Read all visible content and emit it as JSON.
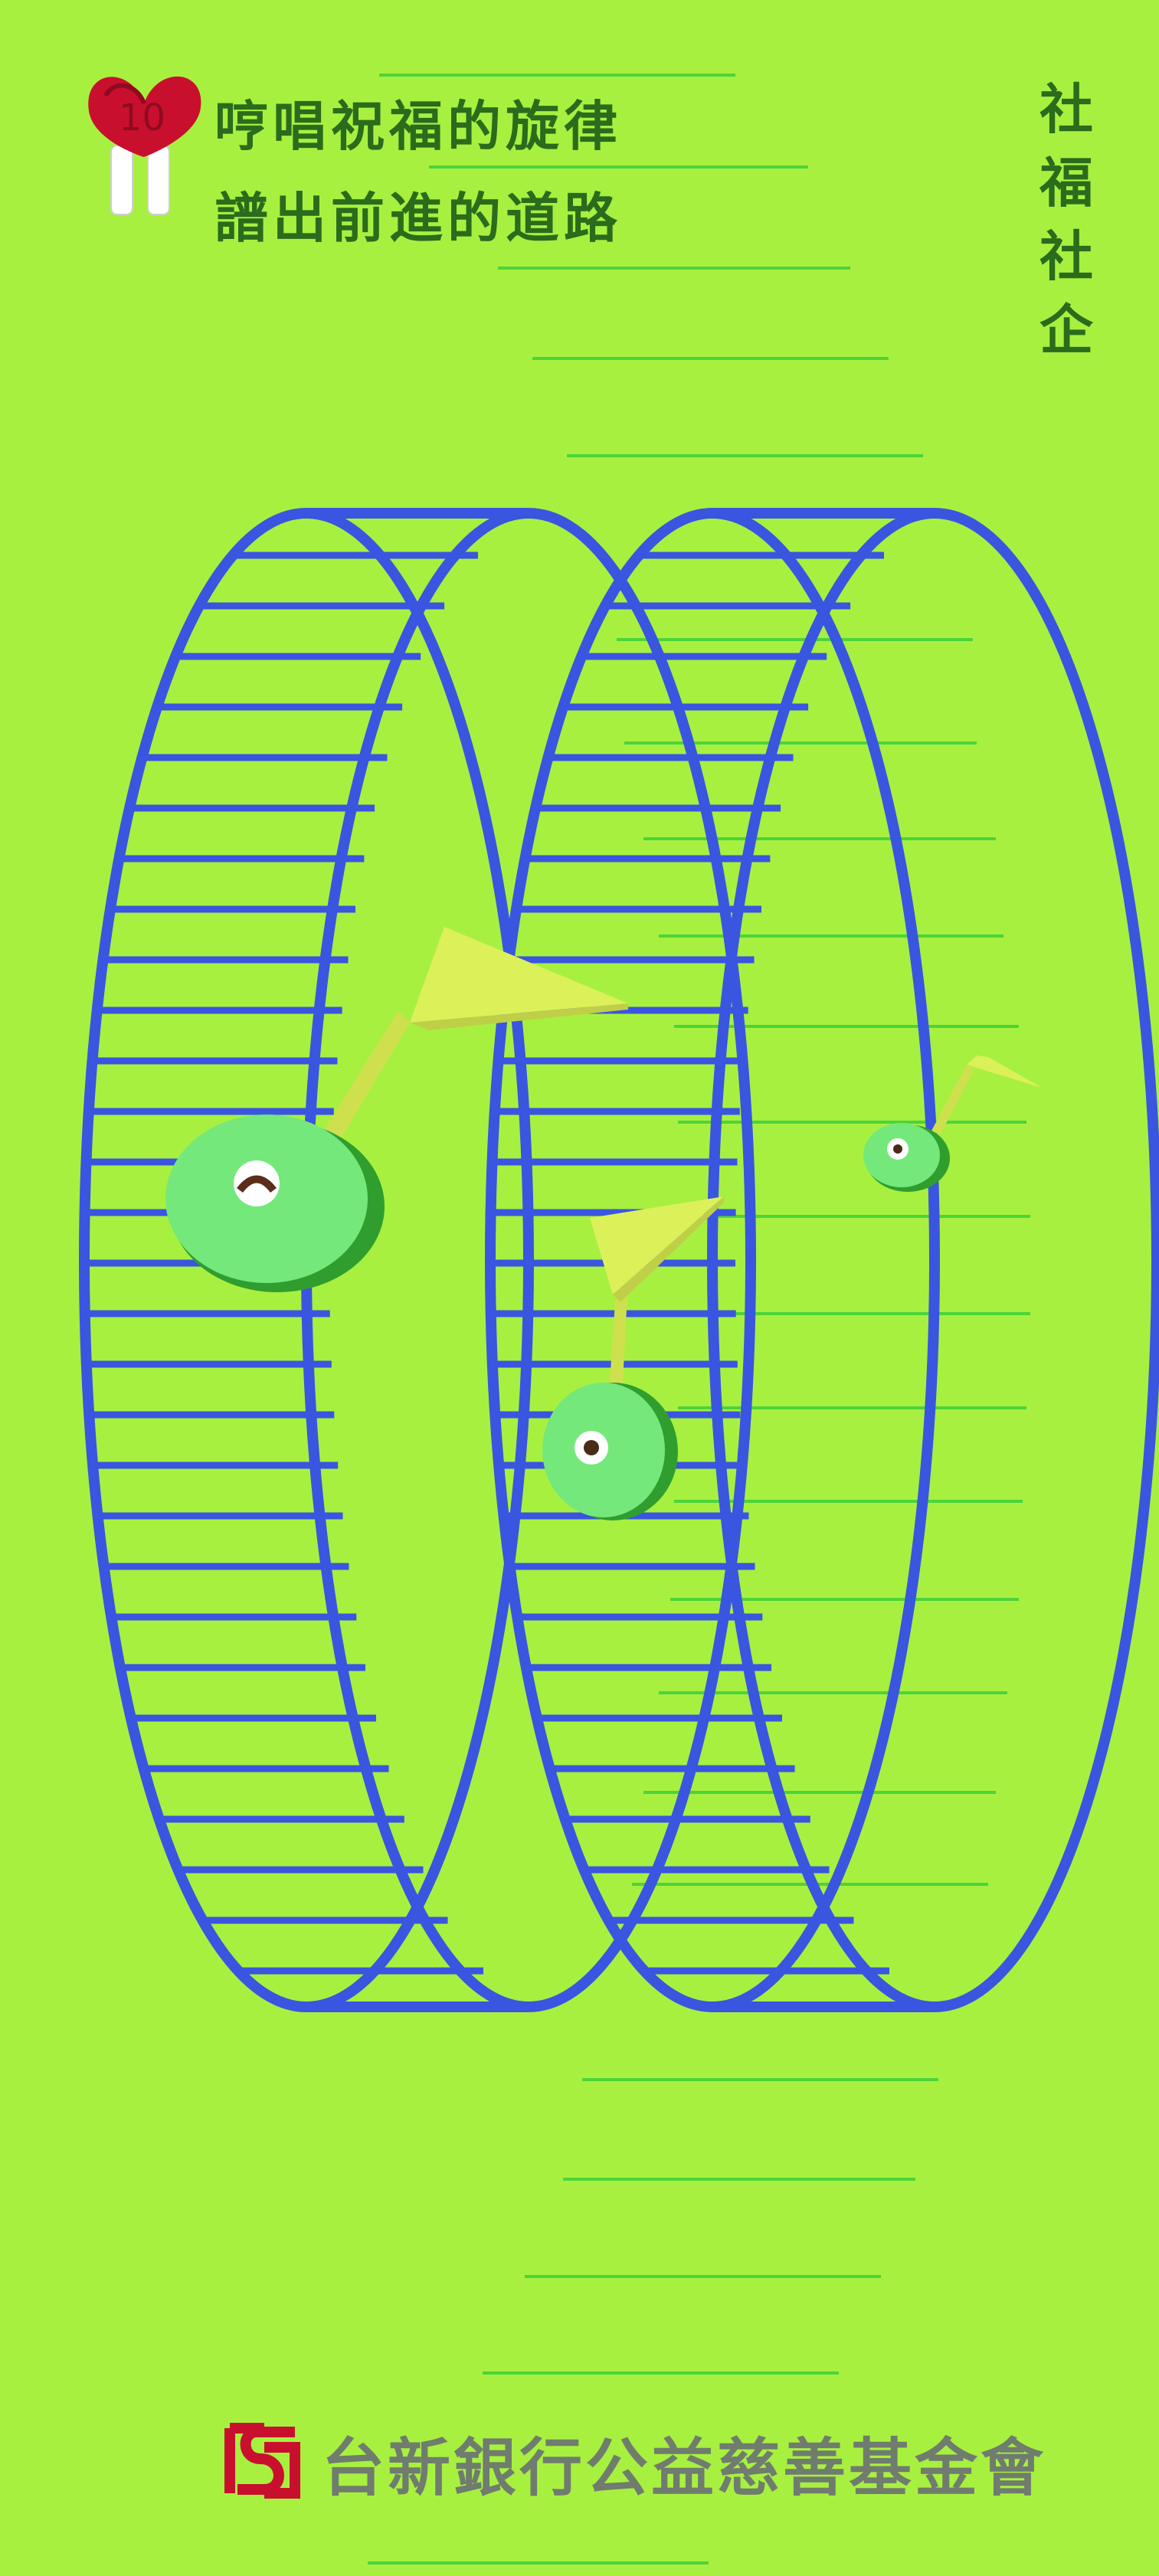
{
  "badge": {
    "number": "10",
    "icon": "heart-hands-badge-icon",
    "color": "#c8102e"
  },
  "headline": {
    "line1": "哼唱祝福的旋律",
    "line2": "譜出前進的道路"
  },
  "tag": {
    "chars": [
      "社",
      "福",
      "社",
      "企"
    ]
  },
  "footer": {
    "org_name": "台新銀行公益慈善基金會",
    "logo": "taishin-logo-icon",
    "logo_color": "#c8102e"
  },
  "colors": {
    "background": "#a8f040",
    "wheel": "#3a55e0",
    "staff_line": "#4cd43a",
    "note_head": "#74e87a",
    "note_shadow": "#2f9e2f",
    "note_stem": "#dcf05a",
    "text": "#2a6b1c"
  }
}
